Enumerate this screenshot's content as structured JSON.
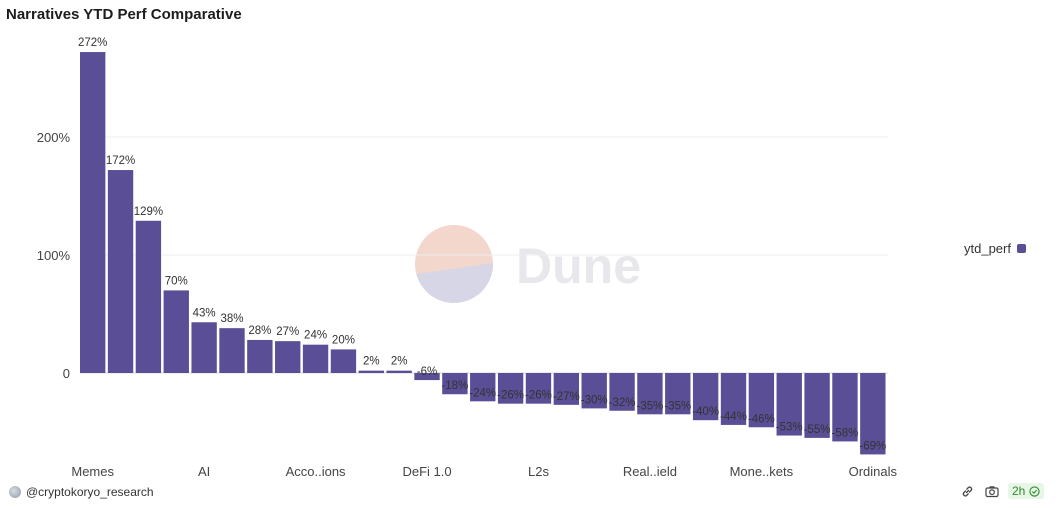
{
  "title": "Narratives YTD Perf Comparative",
  "legend": {
    "label": "ytd_perf"
  },
  "watermark": {
    "text": "Dune"
  },
  "footer": {
    "author": "@cryptokoryo_research",
    "age": "2h"
  },
  "colors": {
    "bar": "#5a4f96",
    "grid": "#eeeeee",
    "zero_line": "#d9d9d9",
    "badge_text": "#2c8a2c"
  },
  "icons": {
    "user": "user-avatar-icon",
    "link": "link-icon",
    "camera": "camera-icon",
    "check": "check-circle-icon"
  },
  "chart_data": {
    "type": "bar",
    "title": "Narratives YTD Perf Comparative",
    "series": [
      {
        "name": "ytd_perf",
        "values": [
          272,
          172,
          129,
          70,
          43,
          38,
          28,
          27,
          24,
          20,
          2,
          2,
          -6,
          -18,
          -24,
          -26,
          -26,
          -27,
          -30,
          -32,
          -35,
          -35,
          -40,
          -44,
          -46,
          -53,
          -55,
          -58,
          -69
        ]
      }
    ],
    "data_labels": [
      "272%",
      "172%",
      "129%",
      "70%",
      "43%",
      "38%",
      "28%",
      "27%",
      "24%",
      "20%",
      "2%",
      "2%",
      "-6%",
      "-18%",
      "-24%",
      "-26%",
      "-26%",
      "-27%",
      "-30%",
      "-32%",
      "-35%",
      "-35%",
      "-40%",
      "-44%",
      "-46%",
      "-53%",
      "-55%",
      "-58%",
      "-69%"
    ],
    "x_tick_labels": [
      {
        "index": 0,
        "label": "Memes"
      },
      {
        "index": 4,
        "label": "AI"
      },
      {
        "index": 8,
        "label": "Acco..ions"
      },
      {
        "index": 12,
        "label": "DeFi 1.0"
      },
      {
        "index": 16,
        "label": "L2s"
      },
      {
        "index": 20,
        "label": "Real..ield"
      },
      {
        "index": 24,
        "label": "Mone..kets"
      },
      {
        "index": 28,
        "label": "Ordinals"
      }
    ],
    "y_ticks": [
      {
        "value": 0,
        "label": "0"
      },
      {
        "value": 100,
        "label": "100%"
      },
      {
        "value": 200,
        "label": "200%"
      }
    ],
    "ylim": [
      -70,
      272
    ],
    "grid": true,
    "legend_position": "right"
  }
}
